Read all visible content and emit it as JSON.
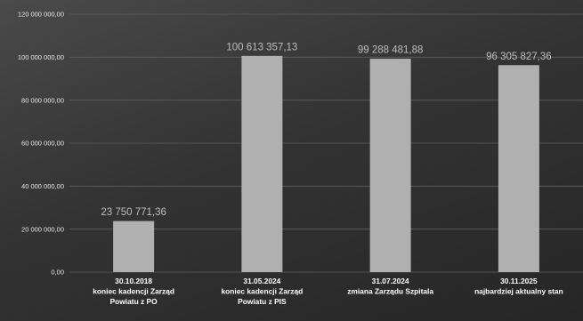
{
  "chart_data": {
    "type": "bar",
    "title": "",
    "xlabel": "",
    "ylabel": "",
    "ylim": [
      0,
      120000000
    ],
    "yticks": [
      "0,00",
      "20 000 000,00",
      "40 000 000,00",
      "60 000 000,00",
      "80 000 000,00",
      "100 000 000,00",
      "120 000 000,00"
    ],
    "grid": true,
    "categories": [
      [
        "30.10.2018",
        "koniec kadencji Zarząd",
        "Powiatu z PO"
      ],
      [
        "31.05.2024",
        "koniec kadencji Zarząd",
        "Powiatu z PIS"
      ],
      [
        "31.07.2024",
        "zmiana Zarządu Szpitala"
      ],
      [
        "30.11.2025",
        "najbardziej aktualny stan"
      ]
    ],
    "values": [
      23750771.36,
      100613357.13,
      99288481.88,
      96305827.36
    ],
    "data_labels": [
      "23 750 771,36",
      "100 613 357,13",
      "99 288 481,88",
      "96 305 827,36"
    ],
    "colors": {
      "bar": "#b0b0b0",
      "data_label": "#bdbdbd",
      "grid": "#5e5e5e",
      "text": "#ffffff"
    }
  }
}
